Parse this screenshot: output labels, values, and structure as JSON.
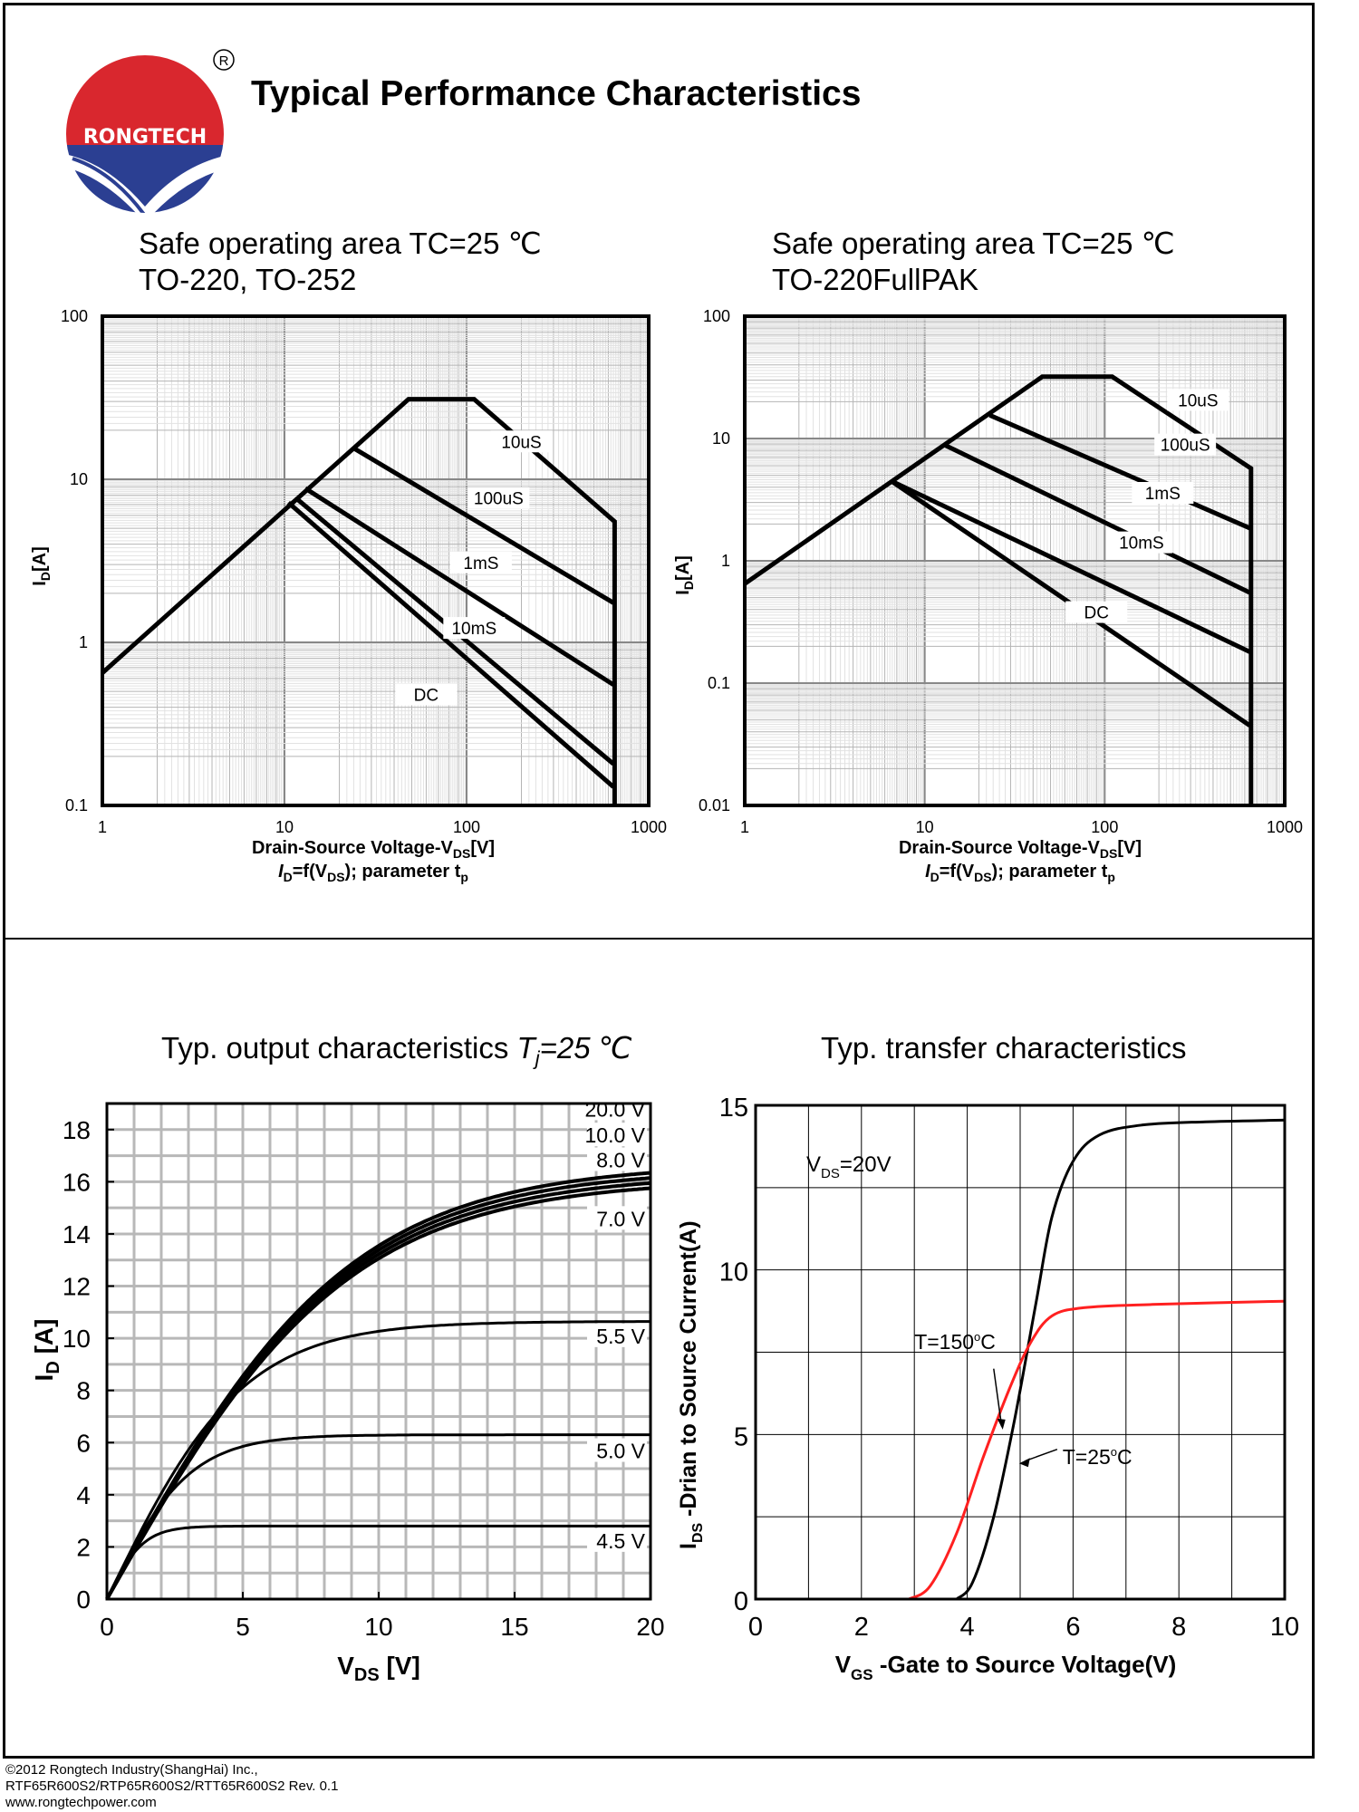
{
  "header": {
    "brand": "RONGTECH",
    "registered_mark": "R",
    "title": "Typical Performance Characteristics",
    "colors": {
      "logo_red": "#d9272e",
      "logo_blue": "#2b3f92",
      "curve_red": "#ff2020",
      "ink": "#000000"
    }
  },
  "footer": {
    "line1": "©2012 Rongtech Industry(ShangHai) Inc.,",
    "line2": "RTF65R600S2/RTP65R600S2/RTT65R600S2  Rev. 0.1",
    "line3": "www.rongtechpower.com"
  },
  "chart_data": [
    {
      "id": "soa1",
      "type": "line",
      "scale": "log-log",
      "title_line1": "Safe operating area TC=25 ℃",
      "title_line2": "TO-220, TO-252",
      "xlabel": "Drain-Source Voltage-V",
      "xlabel_sub": "DS",
      "xlabel_unit": "[V]",
      "subcaption": "I",
      "subcaption_sub1": "D",
      "subcaption_mid": "=f(V",
      "subcaption_sub2": "DS",
      "subcaption_end": "); parameter t",
      "subcaption_sub3": "p",
      "ylabel": "I",
      "ylabel_sub": "D",
      "ylabel_unit": "[A]",
      "xlim": [
        1,
        1000
      ],
      "ylim": [
        0.1,
        100
      ],
      "xticks": [
        "1",
        "10",
        "100",
        "1000"
      ],
      "yticks": [
        "100",
        "10",
        "1",
        "0.1"
      ],
      "series": [
        {
          "name": "10uS",
          "points": [
            [
              1,
              0.65
            ],
            [
              48,
              31
            ],
            [
              110,
              31
            ],
            [
              650,
              5.5
            ],
            [
              650,
              0.1
            ]
          ]
        },
        {
          "name": "100uS",
          "points": [
            [
              24,
              15.5
            ],
            [
              640,
              1.75
            ]
          ]
        },
        {
          "name": "1mS",
          "points": [
            [
              13,
              8.8
            ],
            [
              640,
              0.55
            ]
          ]
        },
        {
          "name": "10mS",
          "points": [
            [
              11.5,
              7.7
            ],
            [
              640,
              0.18
            ]
          ]
        },
        {
          "name": "DC",
          "points": [
            [
              10.5,
              7.2
            ],
            [
              640,
              0.13
            ]
          ]
        }
      ],
      "labels": [
        {
          "text": "10uS",
          "x": 200,
          "y": 16
        },
        {
          "text": "100uS",
          "x": 150,
          "y": 7.2
        },
        {
          "text": "1mS",
          "x": 120,
          "y": 2.9
        },
        {
          "text": "10mS",
          "x": 110,
          "y": 1.15
        },
        {
          "text": "DC",
          "x": 60,
          "y": 0.45
        }
      ]
    },
    {
      "id": "soa2",
      "type": "line",
      "scale": "log-log",
      "title_line1": "Safe operating area TC=25 ℃",
      "title_line2": "TO-220FullPAK",
      "xlabel": "Drain-Source Voltage-V",
      "xlabel_sub": "DS",
      "xlabel_unit": "[V]",
      "subcaption": "I",
      "subcaption_sub1": "D",
      "subcaption_mid": "=f(V",
      "subcaption_sub2": "DS",
      "subcaption_end": "); parameter t",
      "subcaption_sub3": "p",
      "ylabel": "I",
      "ylabel_sub": "D",
      "ylabel_unit": "[A]",
      "xlim": [
        1,
        1000
      ],
      "ylim": [
        0.01,
        100
      ],
      "xticks": [
        "1",
        "10",
        "100",
        "1000"
      ],
      "yticks": [
        "100",
        "10",
        "1",
        "0.1",
        "0.01"
      ],
      "series": [
        {
          "name": "10uS",
          "points": [
            [
              1,
              0.65
            ],
            [
              45,
              32
            ],
            [
              110,
              32
            ],
            [
              650,
              5.7
            ],
            [
              650,
              0.01
            ]
          ]
        },
        {
          "name": "100uS",
          "points": [
            [
              23,
              15.5
            ],
            [
              640,
              1.85
            ]
          ]
        },
        {
          "name": "1mS",
          "points": [
            [
              13,
              8.8
            ],
            [
              640,
              0.55
            ]
          ]
        },
        {
          "name": "10mS",
          "points": [
            [
              6.5,
              4.5
            ],
            [
              640,
              0.18
            ]
          ]
        },
        {
          "name": "DC",
          "points": [
            [
              6.5,
              4.5
            ],
            [
              640,
              0.045
            ]
          ]
        }
      ],
      "labels": [
        {
          "text": "10uS",
          "x": 330,
          "y": 19
        },
        {
          "text": "100uS",
          "x": 280,
          "y": 8.2
        },
        {
          "text": "1mS",
          "x": 210,
          "y": 3.3
        },
        {
          "text": "10mS",
          "x": 160,
          "y": 1.3
        },
        {
          "text": "DC",
          "x": 90,
          "y": 0.35
        }
      ]
    },
    {
      "id": "output",
      "type": "line",
      "scale": "linear",
      "title_prefix": "Typ. output characteristics ",
      "title_italic": "T",
      "title_italic_sub": "j",
      "title_suffix": "=25 ℃",
      "xlabel": "V",
      "xlabel_sub": "DS",
      "xlabel_unit": " [V]",
      "ylabel": "I",
      "ylabel_sub": "D",
      "ylabel_unit": " [A]",
      "xlim": [
        0,
        20
      ],
      "ylim": [
        0,
        19
      ],
      "xticks": [
        0,
        5,
        10,
        15,
        20
      ],
      "yticks": [
        0,
        2,
        4,
        6,
        8,
        10,
        12,
        14,
        16,
        18
      ],
      "series": [
        {
          "name": "20.0 V",
          "sat": 16.7,
          "k": 0.113
        },
        {
          "name": "10.0 V",
          "sat": 16.5,
          "k": 0.113
        },
        {
          "name": "8.0 V",
          "sat": 16.3,
          "k": 0.113
        },
        {
          "name": "7.0 V",
          "sat": 16.1,
          "k": 0.113
        },
        {
          "name": "5.5 V",
          "sat": 10.65,
          "k": 0.2
        },
        {
          "name": "5.0 V",
          "sat": 6.3,
          "k": 0.33
        },
        {
          "name": "4.5 V",
          "sat": 2.8,
          "k": 0.75
        }
      ],
      "labels": [
        {
          "text": "20.0 V",
          "y": 18.5
        },
        {
          "text": "10.0 V",
          "y": 17.5
        },
        {
          "text": "8.0 V",
          "y": 16.55
        },
        {
          "text": "7.0 V",
          "y": 14.3
        },
        {
          "text": "5.5 V",
          "y": 9.8
        },
        {
          "text": "5.0 V",
          "y": 5.4
        },
        {
          "text": "4.5 V",
          "y": 1.95
        }
      ]
    },
    {
      "id": "transfer",
      "type": "line",
      "scale": "linear",
      "title": "Typ. transfer characteristics",
      "xlabel": "V",
      "xlabel_sub": "GS",
      "xlabel_rest": " -Gate to Source Voltage(V)",
      "ylabel": "I",
      "ylabel_sub": "DS",
      "ylabel_rest": " -Drian to Source Current(A)",
      "xlim": [
        0,
        10
      ],
      "ylim": [
        0,
        15
      ],
      "xticks": [
        0,
        2,
        4,
        6,
        8,
        10
      ],
      "yticks": [
        0,
        5,
        10,
        15
      ],
      "annotation": "V",
      "annotation_sub": "DS",
      "annotation_rest": "=20V",
      "series": [
        {
          "name": "T=25°C",
          "label_prefix": "T=25",
          "label_unit": "C",
          "color": "#000000",
          "points": [
            [
              3.8,
              0
            ],
            [
              4.1,
              0.5
            ],
            [
              4.5,
              2.5
            ],
            [
              4.9,
              5.5
            ],
            [
              5.3,
              9
            ],
            [
              5.6,
              11.6
            ],
            [
              6.0,
              13.3
            ],
            [
              6.5,
              14.1
            ],
            [
              7.3,
              14.4
            ],
            [
              8.5,
              14.5
            ],
            [
              10,
              14.55
            ]
          ]
        },
        {
          "name": "T=150°C",
          "label_prefix": "T=150",
          "label_unit": "C",
          "color": "#ff2020",
          "points": [
            [
              2.9,
              0
            ],
            [
              3.3,
              0.4
            ],
            [
              3.8,
              2.0
            ],
            [
              4.3,
              4.3
            ],
            [
              4.8,
              6.4
            ],
            [
              5.2,
              7.8
            ],
            [
              5.6,
              8.6
            ],
            [
              6.2,
              8.85
            ],
            [
              7.5,
              8.95
            ],
            [
              10,
              9.05
            ]
          ]
        }
      ]
    }
  ]
}
